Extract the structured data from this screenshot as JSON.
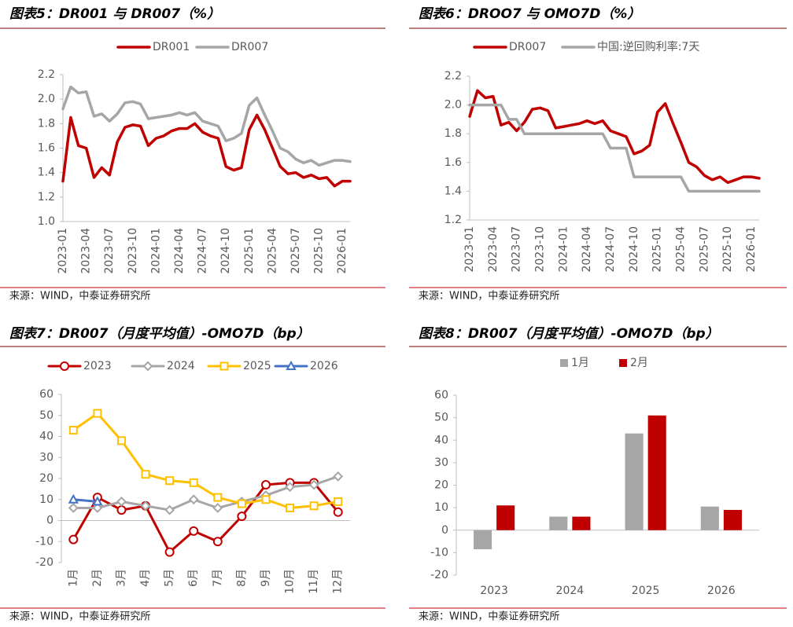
{
  "chart_data": [
    {
      "type": "line",
      "title": "图表5：DR001 与 DR007（%）",
      "source": "来源：WIND，中泰证券研究所",
      "categories": [
        "2023-01",
        null,
        null,
        "2023-04",
        null,
        null,
        "2023-07",
        null,
        null,
        "2023-10",
        null,
        null,
        "2024-01",
        null,
        null,
        "2024-04",
        null,
        null,
        "2024-07",
        null,
        null,
        "2024-10",
        null,
        null,
        "2025-01",
        null,
        null,
        "2025-04",
        null,
        null,
        "2025-07",
        null,
        null,
        "2025-10",
        null,
        null,
        "2026-01",
        null
      ],
      "ylim": [
        1.0,
        2.2
      ],
      "yticks": [
        {
          "value": 1.0,
          "label": "1.0"
        },
        1.2,
        1.4,
        1.6,
        1.8,
        {
          "value": 2.0,
          "label": "2.0"
        },
        2.2
      ],
      "series": [
        {
          "name": "DR001",
          "color": "#c00000",
          "values": [
            1.33,
            1.85,
            1.62,
            1.6,
            1.36,
            1.44,
            1.38,
            1.65,
            1.77,
            1.79,
            1.78,
            1.62,
            1.68,
            1.7,
            1.74,
            1.76,
            1.76,
            1.8,
            1.73,
            1.7,
            1.68,
            1.45,
            1.42,
            1.44,
            1.75,
            1.87,
            1.75,
            1.6,
            1.45,
            1.39,
            1.4,
            1.36,
            1.38,
            1.35,
            1.36,
            1.29,
            1.33,
            1.33
          ]
        },
        {
          "name": "DR007",
          "color": "#a6a6a6",
          "values": [
            1.92,
            2.1,
            2.05,
            2.06,
            1.86,
            1.88,
            1.82,
            1.88,
            1.97,
            1.98,
            1.96,
            1.84,
            1.85,
            1.86,
            1.87,
            1.89,
            1.87,
            1.89,
            1.82,
            1.8,
            1.78,
            1.66,
            1.68,
            1.72,
            1.95,
            2.01,
            1.87,
            1.74,
            1.6,
            1.57,
            1.51,
            1.48,
            1.5,
            1.46,
            1.48,
            1.5,
            1.5,
            1.49
          ]
        }
      ]
    },
    {
      "type": "line",
      "title": "图表6：DROO7 与 OMO7D（%）",
      "source": "来源：WIND，中泰证券研究所",
      "categories": [
        "2023-01",
        null,
        null,
        "2023-04",
        null,
        null,
        "2023-07",
        null,
        null,
        "2023-10",
        null,
        null,
        "2024-01",
        null,
        null,
        "2024-04",
        null,
        null,
        "2024-07",
        null,
        null,
        "2024-10",
        null,
        null,
        "2025-01",
        null,
        null,
        "2025-04",
        null,
        null,
        "2025-07",
        null,
        null,
        "2025-10",
        null,
        null,
        "2026-01",
        null
      ],
      "ylim": [
        1.2,
        2.2
      ],
      "yticks": [
        1.2,
        1.4,
        1.6,
        1.8,
        {
          "value": 2.0,
          "label": "2.0"
        },
        2.2
      ],
      "series": [
        {
          "name": "DR007",
          "color": "#c00000",
          "values": [
            1.92,
            2.1,
            2.05,
            2.06,
            1.86,
            1.88,
            1.82,
            1.88,
            1.97,
            1.98,
            1.96,
            1.84,
            1.85,
            1.86,
            1.87,
            1.89,
            1.87,
            1.89,
            1.82,
            1.8,
            1.78,
            1.66,
            1.68,
            1.72,
            1.95,
            2.01,
            1.87,
            1.74,
            1.6,
            1.57,
            1.51,
            1.48,
            1.5,
            1.46,
            1.48,
            1.5,
            1.5,
            1.49
          ]
        },
        {
          "name": "中国:逆回购利率:7天",
          "color": "#a6a6a6",
          "values": [
            2.0,
            2.0,
            2.0,
            2.0,
            2.0,
            1.9,
            1.9,
            1.8,
            1.8,
            1.8,
            1.8,
            1.8,
            1.8,
            1.8,
            1.8,
            1.8,
            1.8,
            1.8,
            1.7,
            1.7,
            1.7,
            1.5,
            1.5,
            1.5,
            1.5,
            1.5,
            1.5,
            1.5,
            1.4,
            1.4,
            1.4,
            1.4,
            1.4,
            1.4,
            1.4,
            1.4,
            1.4,
            1.4
          ]
        }
      ]
    },
    {
      "type": "line",
      "title": "图表7：DR007（月度平均值）-OMO7D（bp）",
      "source": "来源：WIND，中泰证券研究所",
      "categories": [
        "1月",
        "2月",
        "3月",
        "4月",
        "5月",
        "6月",
        "7月",
        "8月",
        "9月",
        "10月",
        "11月",
        "12月"
      ],
      "ylim": [
        -20,
        60
      ],
      "yticks": [
        -20,
        -10,
        0,
        10,
        20,
        30,
        40,
        50,
        60
      ],
      "series": [
        {
          "name": "2023",
          "color": "#c00000",
          "marker": "circle",
          "values": [
            -9,
            11,
            5,
            7,
            -15,
            -5,
            -10,
            2,
            17,
            18,
            18,
            4
          ]
        },
        {
          "name": "2024",
          "color": "#a6a6a6",
          "marker": "diamond",
          "values": [
            6,
            6,
            9,
            7,
            5,
            10,
            6,
            9,
            12,
            16,
            17,
            21
          ]
        },
        {
          "name": "2025",
          "color": "#ffc000",
          "marker": "square",
          "values": [
            43,
            51,
            38,
            22,
            19,
            18,
            11,
            8,
            10,
            6,
            7,
            9
          ]
        },
        {
          "name": "2026",
          "color": "#4472c4",
          "marker": "triangle",
          "values": [
            10,
            9,
            null,
            null,
            null,
            null,
            null,
            null,
            null,
            null,
            null,
            null
          ]
        }
      ]
    },
    {
      "type": "bar",
      "title": "图表8：DR007（月度平均值）-OMO7D（bp）",
      "source": "来源：WIND，中泰证券研究所",
      "categories": [
        "2023",
        "2024",
        "2025",
        "2026"
      ],
      "ylim": [
        -20,
        60
      ],
      "yticks": [
        -20,
        -10,
        0,
        10,
        20,
        30,
        40,
        50,
        60
      ],
      "series": [
        {
          "name": "1月",
          "color": "#a6a6a6",
          "values": [
            -8.5,
            6,
            43,
            10.5
          ]
        },
        {
          "name": "2月",
          "color": "#c00000",
          "values": [
            11,
            6,
            51,
            9
          ]
        }
      ]
    }
  ]
}
